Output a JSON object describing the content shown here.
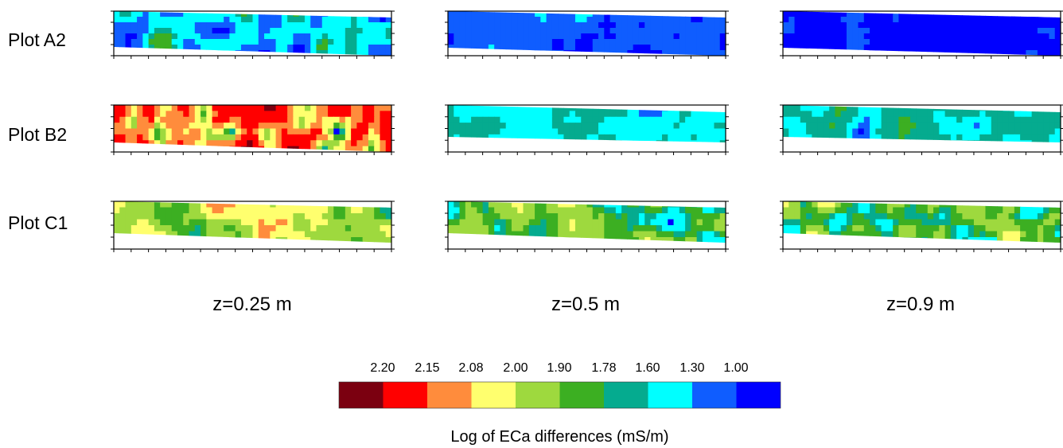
{
  "chart_data": {
    "type": "heatmap",
    "title": "",
    "rows": [
      {
        "label": "Plot A2"
      },
      {
        "label": "Plot B2"
      },
      {
        "label": "Plot C1"
      }
    ],
    "columns": [
      {
        "label": "z=0.25 m"
      },
      {
        "label": "z=0.5 m"
      },
      {
        "label": "z=0.9 m"
      }
    ],
    "colorbar": {
      "title": "Log of ECa differences (mS/m)",
      "tick_labels": [
        "2.20",
        "2.15",
        "2.08",
        "2.00",
        "1.90",
        "1.78",
        "1.60",
        "1.30",
        "1.00"
      ],
      "bins": [
        {
          "color": "#7b0010"
        },
        {
          "color": "#ff0000"
        },
        {
          "color": "#ff8c3c"
        },
        {
          "color": "#ffff6e"
        },
        {
          "color": "#9ed93e"
        },
        {
          "color": "#3caf22"
        },
        {
          "color": "#05ab8f"
        },
        {
          "color": "#00ffff"
        },
        {
          "color": "#0f5dff"
        },
        {
          "color": "#0000ff"
        }
      ]
    },
    "panels": [
      {
        "row": 0,
        "col": 0,
        "weights": [
          0,
          0,
          0,
          0,
          0,
          0.05,
          0.1,
          0.5,
          0.3,
          0.05
        ]
      },
      {
        "row": 0,
        "col": 1,
        "weights": [
          0,
          0,
          0,
          0,
          0,
          0,
          0,
          0.03,
          0.85,
          0.12
        ]
      },
      {
        "row": 0,
        "col": 2,
        "weights": [
          0,
          0,
          0,
          0,
          0,
          0,
          0,
          0,
          0.1,
          0.9
        ]
      },
      {
        "row": 1,
        "col": 0,
        "weights": [
          0.02,
          0.33,
          0.35,
          0.2,
          0.07,
          0.02,
          0.01,
          0,
          0,
          0
        ]
      },
      {
        "row": 1,
        "col": 1,
        "weights": [
          0,
          0,
          0,
          0,
          0,
          0,
          0.33,
          0.63,
          0.04,
          0
        ]
      },
      {
        "row": 1,
        "col": 2,
        "weights": [
          0,
          0,
          0,
          0,
          0,
          0.05,
          0.6,
          0.32,
          0.03,
          0
        ]
      },
      {
        "row": 2,
        "col": 0,
        "weights": [
          0,
          0,
          0.05,
          0.3,
          0.45,
          0.15,
          0.05,
          0,
          0,
          0
        ]
      },
      {
        "row": 2,
        "col": 1,
        "weights": [
          0,
          0,
          0,
          0.03,
          0.35,
          0.35,
          0.15,
          0.12,
          0,
          0
        ]
      },
      {
        "row": 2,
        "col": 2,
        "weights": [
          0,
          0,
          0,
          0.05,
          0.25,
          0.4,
          0.15,
          0.15,
          0,
          0
        ]
      }
    ]
  }
}
